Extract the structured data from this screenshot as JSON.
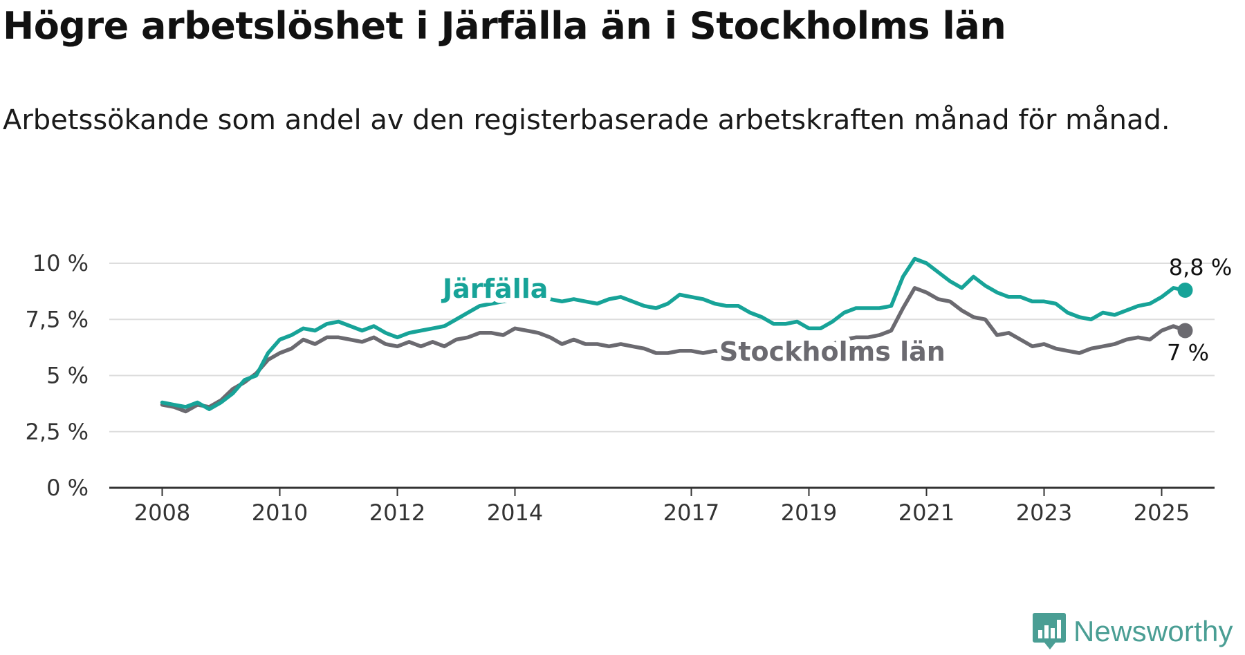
{
  "title": "Högre arbetslöshet i Järfälla än i Stockholms län",
  "subtitle": "Arbetssökande som andel av den registerbaserade arbetskraften månad för månad.",
  "brand": {
    "name": "Newsworthy",
    "color": "#4a9e94",
    "icon": "newsworthy-logo-icon"
  },
  "colors": {
    "jarfalla": "#17a398",
    "stockholm": "#6b6a70",
    "grid": "#dddddd",
    "axis": "#333333"
  },
  "chart_data": {
    "type": "line",
    "title": "Högre arbetslöshet i Järfälla än i Stockholms län",
    "subtitle": "Arbetssökande som andel av den registerbaserade arbetskraften månad för månad.",
    "xlabel": "",
    "ylabel": "",
    "x_ticks": [
      "2008",
      "2010",
      "2012",
      "2014",
      "2017",
      "2019",
      "2021",
      "2023",
      "2025"
    ],
    "x_tick_values": [
      2008.0,
      2010.0,
      2012.0,
      2014.0,
      2017.0,
      2019.0,
      2021.0,
      2023.0,
      2025.0
    ],
    "y_ticks": [
      "0 %",
      "2,5 %",
      "5 %",
      "7,5 %",
      "10 %"
    ],
    "y_tick_values": [
      0,
      2.5,
      5,
      7.5,
      10
    ],
    "xlim": [
      2007.1,
      2025.9
    ],
    "ylim": [
      0,
      10
    ],
    "grid": true,
    "legend": "inline labels",
    "series": [
      {
        "name": "Järfälla",
        "end_label": "8,8 %",
        "points": [
          [
            2008.0,
            3.8
          ],
          [
            2008.2,
            3.7
          ],
          [
            2008.4,
            3.6
          ],
          [
            2008.6,
            3.8
          ],
          [
            2008.8,
            3.5
          ],
          [
            2009.0,
            3.8
          ],
          [
            2009.2,
            4.2
          ],
          [
            2009.4,
            4.8
          ],
          [
            2009.6,
            5.0
          ],
          [
            2009.8,
            6.0
          ],
          [
            2010.0,
            6.6
          ],
          [
            2010.2,
            6.8
          ],
          [
            2010.4,
            7.1
          ],
          [
            2010.6,
            7.0
          ],
          [
            2010.8,
            7.3
          ],
          [
            2011.0,
            7.4
          ],
          [
            2011.2,
            7.2
          ],
          [
            2011.4,
            7.0
          ],
          [
            2011.6,
            7.2
          ],
          [
            2011.8,
            6.9
          ],
          [
            2012.0,
            6.7
          ],
          [
            2012.2,
            6.9
          ],
          [
            2012.4,
            7.0
          ],
          [
            2012.6,
            7.1
          ],
          [
            2012.8,
            7.2
          ],
          [
            2013.0,
            7.5
          ],
          [
            2013.2,
            7.8
          ],
          [
            2013.4,
            8.1
          ],
          [
            2013.6,
            8.2
          ],
          [
            2013.8,
            8.3
          ],
          [
            2014.0,
            8.4
          ],
          [
            2014.2,
            8.5
          ],
          [
            2014.4,
            8.5
          ],
          [
            2014.6,
            8.4
          ],
          [
            2014.8,
            8.3
          ],
          [
            2015.0,
            8.4
          ],
          [
            2015.2,
            8.3
          ],
          [
            2015.4,
            8.2
          ],
          [
            2015.6,
            8.4
          ],
          [
            2015.8,
            8.5
          ],
          [
            2016.0,
            8.3
          ],
          [
            2016.2,
            8.1
          ],
          [
            2016.4,
            8.0
          ],
          [
            2016.6,
            8.2
          ],
          [
            2016.8,
            8.6
          ],
          [
            2017.0,
            8.5
          ],
          [
            2017.2,
            8.4
          ],
          [
            2017.4,
            8.2
          ],
          [
            2017.6,
            8.1
          ],
          [
            2017.8,
            8.1
          ],
          [
            2018.0,
            7.8
          ],
          [
            2018.2,
            7.6
          ],
          [
            2018.4,
            7.3
          ],
          [
            2018.6,
            7.3
          ],
          [
            2018.8,
            7.4
          ],
          [
            2019.0,
            7.1
          ],
          [
            2019.2,
            7.1
          ],
          [
            2019.4,
            7.4
          ],
          [
            2019.6,
            7.8
          ],
          [
            2019.8,
            8.0
          ],
          [
            2020.0,
            8.0
          ],
          [
            2020.2,
            8.0
          ],
          [
            2020.4,
            8.1
          ],
          [
            2020.6,
            9.4
          ],
          [
            2020.8,
            10.2
          ],
          [
            2021.0,
            10.0
          ],
          [
            2021.2,
            9.6
          ],
          [
            2021.4,
            9.2
          ],
          [
            2021.6,
            8.9
          ],
          [
            2021.8,
            9.4
          ],
          [
            2022.0,
            9.0
          ],
          [
            2022.2,
            8.7
          ],
          [
            2022.4,
            8.5
          ],
          [
            2022.6,
            8.5
          ],
          [
            2022.8,
            8.3
          ],
          [
            2023.0,
            8.3
          ],
          [
            2023.2,
            8.2
          ],
          [
            2023.4,
            7.8
          ],
          [
            2023.6,
            7.6
          ],
          [
            2023.8,
            7.5
          ],
          [
            2024.0,
            7.8
          ],
          [
            2024.2,
            7.7
          ],
          [
            2024.4,
            7.9
          ],
          [
            2024.6,
            8.1
          ],
          [
            2024.8,
            8.2
          ],
          [
            2025.0,
            8.5
          ],
          [
            2025.2,
            8.9
          ],
          [
            2025.4,
            8.8
          ]
        ]
      },
      {
        "name": "Stockholms län",
        "end_label": "7 %",
        "points": [
          [
            2008.0,
            3.7
          ],
          [
            2008.2,
            3.6
          ],
          [
            2008.4,
            3.4
          ],
          [
            2008.6,
            3.7
          ],
          [
            2008.8,
            3.6
          ],
          [
            2009.0,
            3.9
          ],
          [
            2009.2,
            4.4
          ],
          [
            2009.4,
            4.7
          ],
          [
            2009.6,
            5.1
          ],
          [
            2009.8,
            5.7
          ],
          [
            2010.0,
            6.0
          ],
          [
            2010.2,
            6.2
          ],
          [
            2010.4,
            6.6
          ],
          [
            2010.6,
            6.4
          ],
          [
            2010.8,
            6.7
          ],
          [
            2011.0,
            6.7
          ],
          [
            2011.2,
            6.6
          ],
          [
            2011.4,
            6.5
          ],
          [
            2011.6,
            6.7
          ],
          [
            2011.8,
            6.4
          ],
          [
            2012.0,
            6.3
          ],
          [
            2012.2,
            6.5
          ],
          [
            2012.4,
            6.3
          ],
          [
            2012.6,
            6.5
          ],
          [
            2012.8,
            6.3
          ],
          [
            2013.0,
            6.6
          ],
          [
            2013.2,
            6.7
          ],
          [
            2013.4,
            6.9
          ],
          [
            2013.6,
            6.9
          ],
          [
            2013.8,
            6.8
          ],
          [
            2014.0,
            7.1
          ],
          [
            2014.2,
            7.0
          ],
          [
            2014.4,
            6.9
          ],
          [
            2014.6,
            6.7
          ],
          [
            2014.8,
            6.4
          ],
          [
            2015.0,
            6.6
          ],
          [
            2015.2,
            6.4
          ],
          [
            2015.4,
            6.4
          ],
          [
            2015.6,
            6.3
          ],
          [
            2015.8,
            6.4
          ],
          [
            2016.0,
            6.3
          ],
          [
            2016.2,
            6.2
          ],
          [
            2016.4,
            6.0
          ],
          [
            2016.6,
            6.0
          ],
          [
            2016.8,
            6.1
          ],
          [
            2017.0,
            6.1
          ],
          [
            2017.2,
            6.0
          ],
          [
            2017.4,
            6.1
          ],
          [
            2017.6,
            6.0
          ],
          [
            2017.8,
            6.2
          ],
          [
            2018.0,
            6.2
          ],
          [
            2018.2,
            6.1
          ],
          [
            2018.4,
            6.0
          ],
          [
            2018.6,
            6.0
          ],
          [
            2018.8,
            6.1
          ],
          [
            2019.0,
            6.1
          ],
          [
            2019.2,
            6.2
          ],
          [
            2019.4,
            6.4
          ],
          [
            2019.6,
            6.6
          ],
          [
            2019.8,
            6.7
          ],
          [
            2020.0,
            6.7
          ],
          [
            2020.2,
            6.8
          ],
          [
            2020.4,
            7.0
          ],
          [
            2020.6,
            8.0
          ],
          [
            2020.8,
            8.9
          ],
          [
            2021.0,
            8.7
          ],
          [
            2021.2,
            8.4
          ],
          [
            2021.4,
            8.3
          ],
          [
            2021.6,
            7.9
          ],
          [
            2021.8,
            7.6
          ],
          [
            2022.0,
            7.5
          ],
          [
            2022.2,
            6.8
          ],
          [
            2022.4,
            6.9
          ],
          [
            2022.6,
            6.6
          ],
          [
            2022.8,
            6.3
          ],
          [
            2023.0,
            6.4
          ],
          [
            2023.2,
            6.2
          ],
          [
            2023.4,
            6.1
          ],
          [
            2023.6,
            6.0
          ],
          [
            2023.8,
            6.2
          ],
          [
            2024.0,
            6.3
          ],
          [
            2024.2,
            6.4
          ],
          [
            2024.4,
            6.6
          ],
          [
            2024.6,
            6.7
          ],
          [
            2024.8,
            6.6
          ],
          [
            2025.0,
            7.0
          ],
          [
            2025.2,
            7.2
          ],
          [
            2025.4,
            7.0
          ]
        ]
      }
    ]
  }
}
